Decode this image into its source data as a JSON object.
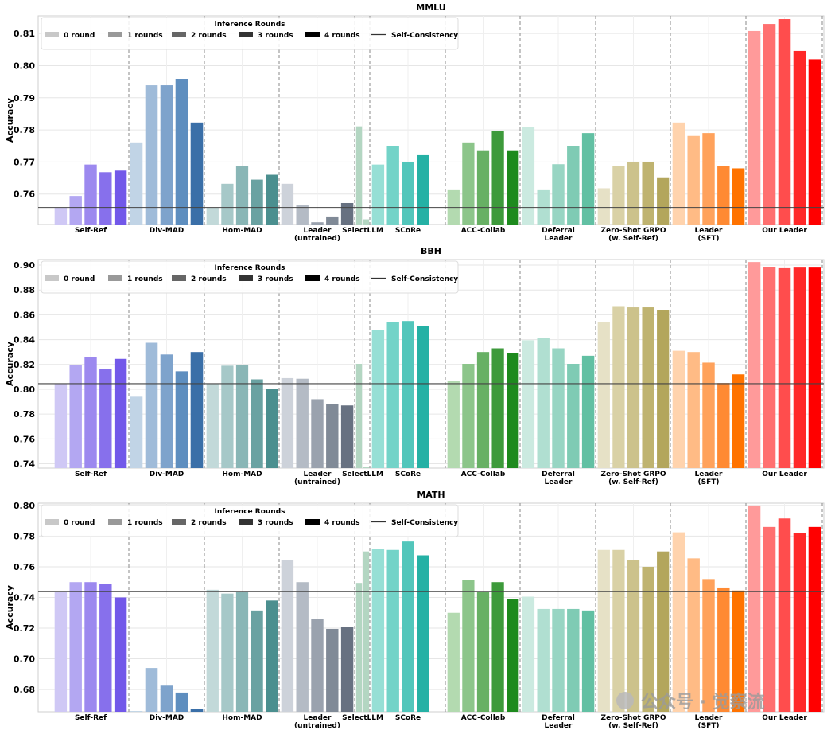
{
  "legend": {
    "title": "Inference Rounds",
    "items": [
      "0 round",
      "1 rounds",
      "2 rounds",
      "3 rounds",
      "4 rounds"
    ],
    "line_label": "Self-Consistency",
    "shade_colors": [
      "#c8c8c8",
      "#999999",
      "#666666",
      "#333333",
      "#000000"
    ]
  },
  "watermark": "公众号 · 觉察流",
  "chart_data": [
    {
      "type": "bar",
      "title": "MMLU",
      "ylabel": "Accuracy",
      "ylim": [
        0.7505,
        0.8155
      ],
      "yticks": [
        0.76,
        0.77,
        0.78,
        0.79,
        0.8,
        0.81
      ],
      "ytick_labels": [
        "0.76",
        "0.77",
        "0.78",
        "0.79",
        "0.80",
        "0.81"
      ],
      "baseline": 0.7558,
      "groups": [
        {
          "name": "Self-Ref",
          "label_lines": [
            "Self-Ref"
          ],
          "values": [
            0.7558,
            0.7594,
            0.7692,
            0.7668,
            0.7673
          ]
        },
        {
          "name": "Div-MAD",
          "label_lines": [
            "Div-MAD"
          ],
          "values": [
            0.7761,
            0.7939,
            0.7939,
            0.7959,
            0.7823
          ]
        },
        {
          "name": "Hom-MAD",
          "label_lines": [
            "Hom-MAD"
          ],
          "values": [
            0.7558,
            0.7632,
            0.7687,
            0.7645,
            0.766
          ]
        },
        {
          "name": "Leader (untrained)",
          "label_lines": [
            "Leader",
            "(untrained)"
          ],
          "values": [
            0.7632,
            0.7565,
            0.7512,
            0.753,
            0.7572
          ]
        },
        {
          "name": "SelectLLM",
          "label_lines": [
            "SelectLLM"
          ],
          "values": [
            0.7811,
            0.7521
          ]
        },
        {
          "name": "SCoRe",
          "label_lines": [
            "SCoRe"
          ],
          "values": [
            0.7692,
            0.7749,
            0.7701,
            0.7721
          ]
        },
        {
          "name": "ACC-Collab",
          "label_lines": [
            "ACC-Collab"
          ],
          "values": [
            0.7612,
            0.7761,
            0.7734,
            0.7796,
            0.7734
          ]
        },
        {
          "name": "Deferral Leader",
          "label_lines": [
            "Deferral",
            "Leader"
          ],
          "values": [
            0.7808,
            0.7612,
            0.7693,
            0.7749,
            0.779
          ]
        },
        {
          "name": "Zero-Shot GRPO (w. Self-Ref)",
          "label_lines": [
            "Zero-Shot GRPO",
            "(w. Self-Ref)"
          ],
          "values": [
            0.7618,
            0.7687,
            0.7701,
            0.7701,
            0.7652
          ]
        },
        {
          "name": "Leader (SFT)",
          "label_lines": [
            "Leader",
            "(SFT)"
          ],
          "values": [
            0.7823,
            0.7781,
            0.779,
            0.7687,
            0.768
          ]
        },
        {
          "name": "Our Leader",
          "label_lines": [
            "Our Leader"
          ],
          "values": [
            0.8108,
            0.813,
            0.8145,
            0.8046,
            0.802
          ]
        }
      ]
    },
    {
      "type": "bar",
      "title": "BBH",
      "ylabel": "Accuracy",
      "ylim": [
        0.7365,
        0.9045
      ],
      "yticks": [
        0.74,
        0.76,
        0.78,
        0.8,
        0.82,
        0.84,
        0.86,
        0.88,
        0.9
      ],
      "ytick_labels": [
        "0.74",
        "0.76",
        "0.78",
        "0.80",
        "0.82",
        "0.84",
        "0.86",
        "0.88",
        "0.90"
      ],
      "baseline": 0.8045,
      "groups": [
        {
          "name": "Self-Ref",
          "label_lines": [
            "Self-Ref"
          ],
          "values": [
            0.8045,
            0.8195,
            0.826,
            0.816,
            0.8245
          ]
        },
        {
          "name": "Div-MAD",
          "label_lines": [
            "Div-MAD"
          ],
          "values": [
            0.794,
            0.8375,
            0.828,
            0.8145,
            0.83
          ]
        },
        {
          "name": "Hom-MAD",
          "label_lines": [
            "Hom-MAD"
          ],
          "values": [
            0.8045,
            0.819,
            0.8195,
            0.808,
            0.8005
          ]
        },
        {
          "name": "Leader (untrained)",
          "label_lines": [
            "Leader",
            "(untrained)"
          ],
          "values": [
            0.809,
            0.8085,
            0.792,
            0.788,
            0.787
          ]
        },
        {
          "name": "SelectLLM",
          "label_lines": [
            "SelectLLM"
          ],
          "values": [
            0.8205,
            0.7375
          ]
        },
        {
          "name": "SCoRe",
          "label_lines": [
            "SCoRe"
          ],
          "values": [
            0.848,
            0.854,
            0.855,
            0.851
          ]
        },
        {
          "name": "ACC-Collab",
          "label_lines": [
            "ACC-Collab"
          ],
          "values": [
            0.807,
            0.8205,
            0.83,
            0.833,
            0.829
          ]
        },
        {
          "name": "Deferral Leader",
          "label_lines": [
            "Deferral",
            "Leader"
          ],
          "values": [
            0.8395,
            0.8415,
            0.833,
            0.8205,
            0.827
          ]
        },
        {
          "name": "Zero-Shot GRPO (w. Self-Ref)",
          "label_lines": [
            "Zero-Shot GRPO",
            "(w. Self-Ref)"
          ],
          "values": [
            0.854,
            0.867,
            0.866,
            0.866,
            0.8635
          ]
        },
        {
          "name": "Leader (SFT)",
          "label_lines": [
            "Leader",
            "(SFT)"
          ],
          "values": [
            0.831,
            0.83,
            0.8215,
            0.805,
            0.812
          ]
        },
        {
          "name": "Our Leader",
          "label_lines": [
            "Our Leader"
          ],
          "values": [
            0.9025,
            0.8985,
            0.8975,
            0.898,
            0.898
          ]
        }
      ]
    },
    {
      "type": "bar",
      "title": "MATH",
      "ylabel": "Accuracy",
      "ylim": [
        0.6655,
        0.8015
      ],
      "yticks": [
        0.68,
        0.7,
        0.72,
        0.74,
        0.76,
        0.78,
        0.8
      ],
      "ytick_labels": [
        "0.68",
        "0.70",
        "0.72",
        "0.74",
        "0.76",
        "0.78",
        "0.80"
      ],
      "baseline": 0.744,
      "groups": [
        {
          "name": "Self-Ref",
          "label_lines": [
            "Self-Ref"
          ],
          "values": [
            0.744,
            0.75,
            0.75,
            0.749,
            0.74
          ]
        },
        {
          "name": "Div-MAD",
          "label_lines": [
            "Div-MAD"
          ],
          "values": [
            0.666,
            0.694,
            0.6825,
            0.678,
            0.6675
          ]
        },
        {
          "name": "Hom-MAD",
          "label_lines": [
            "Hom-MAD"
          ],
          "values": [
            0.745,
            0.7425,
            0.744,
            0.7315,
            0.738
          ]
        },
        {
          "name": "Leader (untrained)",
          "label_lines": [
            "Leader",
            "(untrained)"
          ],
          "values": [
            0.7645,
            0.75,
            0.726,
            0.7195,
            0.721
          ]
        },
        {
          "name": "SelectLLM",
          "label_lines": [
            "SelectLLM"
          ],
          "values": [
            0.7495,
            0.77
          ]
        },
        {
          "name": "SCoRe",
          "label_lines": [
            "SCoRe"
          ],
          "values": [
            0.7715,
            0.771,
            0.7765,
            0.7675
          ]
        },
        {
          "name": "ACC-Collab",
          "label_lines": [
            "ACC-Collab"
          ],
          "values": [
            0.73,
            0.7515,
            0.7435,
            0.75,
            0.739
          ]
        },
        {
          "name": "Deferral Leader",
          "label_lines": [
            "Deferral",
            "Leader"
          ],
          "values": [
            0.7405,
            0.7325,
            0.7325,
            0.7325,
            0.7315
          ]
        },
        {
          "name": "Zero-Shot GRPO (w. Self-Ref)",
          "label_lines": [
            "Zero-Shot GRPO",
            "(w. Self-Ref)"
          ],
          "values": [
            0.771,
            0.771,
            0.7645,
            0.76,
            0.77
          ]
        },
        {
          "name": "Leader (SFT)",
          "label_lines": [
            "Leader",
            "(SFT)"
          ],
          "values": [
            0.7825,
            0.7655,
            0.752,
            0.7465,
            0.7445
          ]
        },
        {
          "name": "Our Leader",
          "label_lines": [
            "Our Leader"
          ],
          "values": [
            0.8,
            0.786,
            0.7915,
            0.782,
            0.786
          ]
        }
      ]
    }
  ],
  "palettes": {
    "Self-Ref": [
      "#cfc8f5",
      "#b3a7f2",
      "#9c89ef",
      "#8770ec",
      "#7258e9"
    ],
    "Div-MAD": [
      "#c1d4e6",
      "#9fbbd9",
      "#7ea3cc",
      "#5e8ebf",
      "#3a6fa8"
    ],
    "Hom-MAD": [
      "#c2d9d9",
      "#a6c8c8",
      "#89b6b6",
      "#6aa2a2",
      "#4b8f8f"
    ],
    "Leader (untrained)": [
      "#cdd2da",
      "#b4bbc5",
      "#9aa2ae",
      "#808a97",
      "#677181"
    ],
    "SelectLLM": [
      "#b3d6c2",
      "#b3d6c2"
    ],
    "SCoRe": [
      "#96dfd5",
      "#73d3c8",
      "#52c6bb",
      "#25b1a5"
    ],
    "ACC-Collab": [
      "#b3dab0",
      "#8cc58a",
      "#67b064",
      "#3d9a3b",
      "#1d8a1d"
    ],
    "Deferral Leader": [
      "#cbeae0",
      "#b0dfd1",
      "#98d5c3",
      "#7fcbb4",
      "#62c0a3"
    ],
    "Zero-Shot GRPO (w. Self-Ref)": [
      "#e6e1c6",
      "#d9d1a6",
      "#ccc28b",
      "#bfb370",
      "#b3a65c"
    ],
    "Leader (SFT)": [
      "#ffd3ad",
      "#ffbb85",
      "#ffa25c",
      "#ff8a33",
      "#ff7300"
    ],
    "Our Leader": [
      "#ff9a9a",
      "#ff7070",
      "#ff4d4d",
      "#ff2828",
      "#ff0000"
    ]
  }
}
